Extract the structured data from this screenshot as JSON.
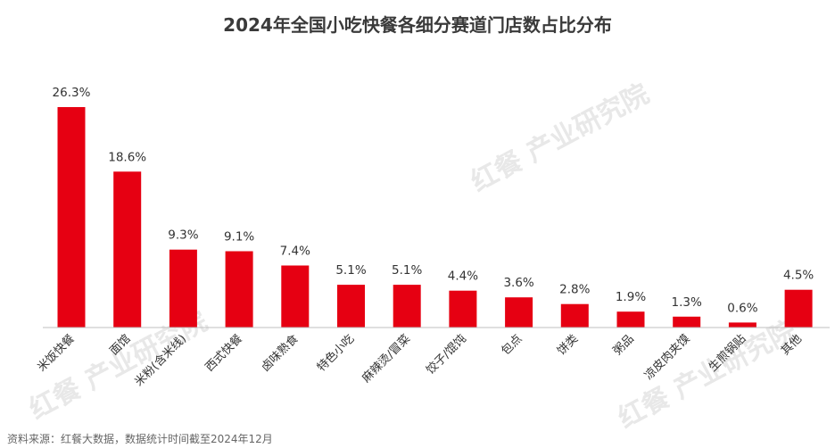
{
  "chart_data": {
    "type": "bar",
    "title": "2024年全国小吃快餐各细分赛道门店数占比分布",
    "categories": [
      "米饭快餐",
      "面馆",
      "米粉(含米线)",
      "西式快餐",
      "卤味熟食",
      "特色小吃",
      "麻辣烫/冒菜",
      "饺子/馄饨",
      "包点",
      "饼类",
      "粥品",
      "凉皮肉夹馍",
      "生煎锅贴",
      "其他"
    ],
    "values": [
      26.3,
      18.6,
      9.3,
      9.1,
      7.4,
      5.1,
      5.1,
      4.4,
      3.6,
      2.8,
      1.9,
      1.3,
      0.6,
      4.5
    ],
    "value_labels": [
      "26.3%",
      "18.6%",
      "9.3%",
      "9.1%",
      "7.4%",
      "5.1%",
      "5.1%",
      "4.4%",
      "3.6%",
      "2.8%",
      "1.9%",
      "1.3%",
      "0.6%",
      "4.5%"
    ],
    "unit": "%",
    "xlabel": "",
    "ylabel": "",
    "ylim": [
      0,
      26.3
    ],
    "grid": false,
    "legend": "none",
    "bar_color": "#e60012",
    "source": "资料来源：红餐大数据，数据统计时间截至2024年12月"
  },
  "watermark": "红餐 产业研究院"
}
